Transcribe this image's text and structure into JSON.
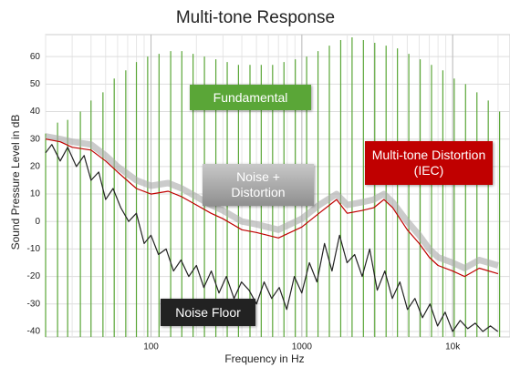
{
  "chart_data": {
    "type": "line",
    "title": "Multi-tone Response",
    "x_label": "Frequency in Hz",
    "y_label": "Sound Pressure Level in dB",
    "x_scale": "log",
    "grid": true,
    "xlim": [
      20,
      24000
    ],
    "ylim": [
      -42,
      68
    ],
    "xticks": [
      100,
      1000,
      {
        "value": 10000,
        "label": "10k"
      }
    ],
    "yticks": [
      60,
      50,
      40,
      30,
      20,
      10,
      0,
      -10,
      -20,
      -30,
      -40
    ],
    "series": [
      {
        "name": "Fundamental",
        "color": "#5aa637",
        "style": "stem",
        "x": [
          20,
          24,
          28,
          34,
          40,
          48,
          57,
          68,
          80,
          95,
          113,
          135,
          160,
          190,
          226,
          269,
          320,
          380,
          453,
          538,
          640,
          761,
          905,
          1076,
          1280,
          1522,
          1810,
          2153,
          2560,
          3044,
          3620,
          4305,
          5120,
          6089,
          7241,
          8611,
          10240,
          12177,
          14482,
          17222,
          20480
        ],
        "values": [
          32,
          36,
          37,
          40,
          44,
          47,
          52,
          55,
          58,
          60,
          61,
          62,
          62,
          61,
          60,
          59,
          58,
          57,
          57,
          57,
          57,
          58,
          59,
          60,
          62,
          64,
          66,
          67,
          66,
          65,
          64,
          63,
          61,
          59,
          57,
          55,
          52,
          50,
          47,
          44,
          40
        ]
      },
      {
        "name": "Noise + Distortion",
        "color": "#a8a8a8",
        "style": "band",
        "x": [
          20,
          25,
          30,
          40,
          50,
          60,
          80,
          100,
          130,
          160,
          200,
          250,
          300,
          400,
          500,
          700,
          1000,
          1300,
          1700,
          2000,
          2500,
          3000,
          3500,
          4000,
          5000,
          6000,
          7000,
          8000,
          10000,
          12000,
          15000,
          20000
        ],
        "values": [
          31,
          30,
          29,
          28,
          24,
          20,
          15,
          13,
          14,
          12,
          9,
          6,
          4,
          0,
          -1,
          -3,
          1,
          6,
          10,
          6,
          7,
          8,
          10,
          7,
          0,
          -5,
          -10,
          -13,
          -15,
          -17,
          -14,
          -16
        ]
      },
      {
        "name": "Multi-tone Distortion (IEC)",
        "color": "#c00000",
        "style": "line",
        "x": [
          20,
          25,
          30,
          40,
          50,
          60,
          80,
          100,
          130,
          160,
          200,
          250,
          300,
          400,
          500,
          700,
          1000,
          1300,
          1700,
          2000,
          2500,
          3000,
          3500,
          4000,
          5000,
          6000,
          7000,
          8000,
          10000,
          12000,
          15000,
          20000
        ],
        "values": [
          30,
          29,
          27,
          26,
          22,
          18,
          12,
          10,
          11,
          9,
          6,
          3,
          1,
          -3,
          -4,
          -6,
          -2,
          3,
          8,
          3,
          4,
          5,
          8,
          5,
          -3,
          -8,
          -13,
          -16,
          -18,
          -20,
          -17,
          -19
        ]
      },
      {
        "name": "Noise Floor",
        "color": "#222222",
        "style": "line",
        "x": [
          20,
          22,
          25,
          28,
          32,
          36,
          40,
          45,
          50,
          56,
          63,
          71,
          80,
          90,
          100,
          112,
          126,
          141,
          158,
          178,
          200,
          224,
          251,
          282,
          316,
          355,
          398,
          447,
          501,
          562,
          631,
          708,
          794,
          891,
          1000,
          1122,
          1259,
          1413,
          1585,
          1778,
          1995,
          2239,
          2512,
          2818,
          3162,
          3548,
          3981,
          4467,
          5012,
          5623,
          6310,
          7079,
          7943,
          8913,
          10000,
          11220,
          12589,
          14125,
          15849,
          17783,
          19953
        ],
        "values": [
          25,
          28,
          22,
          27,
          20,
          24,
          15,
          18,
          8,
          12,
          5,
          0,
          3,
          -8,
          -5,
          -12,
          -10,
          -18,
          -14,
          -20,
          -16,
          -24,
          -18,
          -26,
          -20,
          -28,
          -22,
          -25,
          -30,
          -22,
          -28,
          -24,
          -32,
          -20,
          -26,
          -15,
          -22,
          -8,
          -18,
          -5,
          -15,
          -12,
          -20,
          -10,
          -25,
          -18,
          -28,
          -22,
          -32,
          -28,
          -35,
          -30,
          -38,
          -33,
          -40,
          -36,
          -39,
          -37,
          -40,
          -38,
          -40
        ]
      }
    ]
  }
}
